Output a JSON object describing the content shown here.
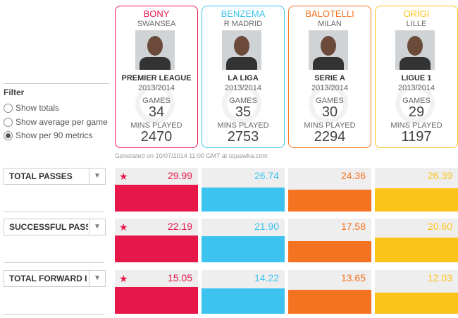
{
  "filter": {
    "title": "Filter",
    "options": [
      "Show totals",
      "Show average per game",
      "Show per 90 metrics"
    ],
    "selected": 2
  },
  "players": [
    {
      "name": "BONY",
      "club": "SWANSEA",
      "league": "PREMIER LEAGUE",
      "season": "2013/2014",
      "games_label": "GAMES",
      "games": 34,
      "mins_label": "MINS PLAYED",
      "mins": 2470,
      "color": "#e8174a"
    },
    {
      "name": "BENZEMA",
      "club": "R MADRID",
      "league": "LA LIGA",
      "season": "2013/2014",
      "games_label": "GAMES",
      "games": 35,
      "mins_label": "MINS PLAYED",
      "mins": 2753,
      "color": "#3cc3ef"
    },
    {
      "name": "BALOTELLI",
      "club": "MILAN",
      "league": "SERIE A",
      "season": "2013/2014",
      "games_label": "GAMES",
      "games": 30,
      "mins_label": "MINS PLAYED",
      "mins": 2294,
      "color": "#f47320"
    },
    {
      "name": "ORIGI",
      "club": "LILLE",
      "league": "LIGUE 1",
      "season": "2013/2014",
      "games_label": "GAMES",
      "games": 29,
      "mins_label": "MINS PLAYED",
      "mins": 1197,
      "color": "#fcc31b"
    }
  ],
  "generated": "Generated on 10/07/2014 11:00 GMT at squawka.com",
  "metrics": [
    {
      "label": "TOTAL PASSES",
      "values": [
        29.99,
        26.74,
        24.36,
        26.39
      ],
      "value_labels": [
        "29.99",
        "26.74",
        "24.36",
        "26.39"
      ]
    },
    {
      "label": "SUCCESSFUL PASS",
      "values": [
        22.19,
        21.9,
        17.58,
        20.6
      ],
      "value_labels": [
        "22.19",
        "21.90",
        "17.58",
        "20.60"
      ]
    },
    {
      "label": "TOTAL FORWARD I",
      "values": [
        15.05,
        14.22,
        13.65,
        12.03
      ],
      "value_labels": [
        "15.05",
        "14.22",
        "13.65",
        "12.03"
      ]
    }
  ]
}
